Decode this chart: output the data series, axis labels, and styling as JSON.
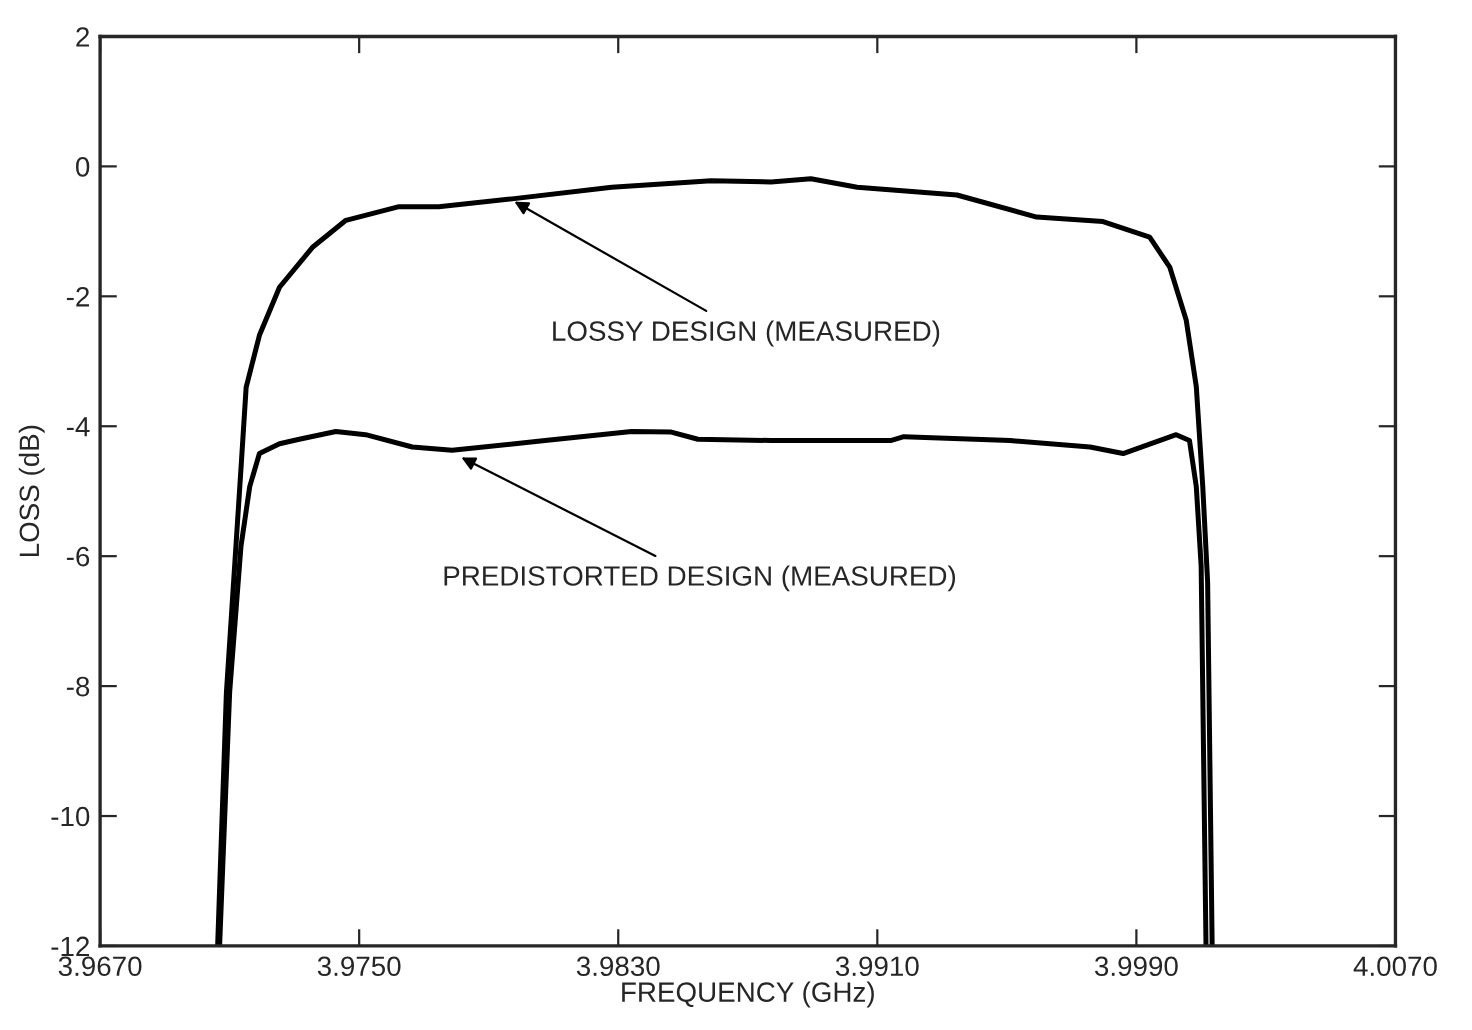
{
  "chart_data": {
    "type": "line",
    "xlabel": "FREQUENCY (GHz)",
    "ylabel": "LOSS (dB)",
    "xlim": [
      3.967,
      4.007
    ],
    "ylim": [
      -12,
      2
    ],
    "xticks": [
      {
        "value": 3.967,
        "label": "3.9670"
      },
      {
        "value": 3.975,
        "label": "3.9750"
      },
      {
        "value": 3.983,
        "label": "3.9830"
      },
      {
        "value": 3.991,
        "label": "3.9910"
      },
      {
        "value": 3.999,
        "label": "3.9990"
      },
      {
        "value": 4.007,
        "label": "4.0070"
      }
    ],
    "yticks": [
      -12,
      -10,
      -8,
      -6,
      -4,
      -2,
      0,
      2
    ],
    "grid": false,
    "legend": false,
    "marker": "none",
    "line_style": "solid",
    "series": [
      {
        "color": "#000000",
        "x": [
          3.97063,
          3.9709,
          3.97137,
          3.97151,
          3.97192,
          3.97254,
          3.97357,
          3.97459,
          3.97623,
          3.97746,
          3.97972,
          3.9828,
          3.98587,
          3.98772,
          3.98895,
          3.99038,
          3.99346,
          3.99592,
          3.99797,
          3.99941,
          4.00003,
          4.00054,
          4.00085,
          4.00105,
          4.0012,
          4.00134
        ],
        "values": [
          -12,
          -8.1,
          -4.5,
          -3.4,
          -2.6,
          -1.86,
          -1.24,
          -0.83,
          -0.62,
          -0.62,
          -0.5,
          -0.32,
          -0.22,
          -0.24,
          -0.19,
          -0.32,
          -0.44,
          -0.78,
          -0.85,
          -1.09,
          -1.55,
          -2.37,
          -3.39,
          -4.93,
          -6.4,
          -12
        ]
      },
      {
        "color": "#000000",
        "x": [
          3.97069,
          3.971,
          3.97135,
          3.97162,
          3.97192,
          3.97254,
          3.97315,
          3.97428,
          3.9752,
          3.97664,
          3.97787,
          3.98074,
          3.98341,
          3.98464,
          3.98546,
          3.98772,
          3.99141,
          3.99182,
          3.9951,
          3.99757,
          3.99859,
          4.00023,
          4.00064,
          4.00085,
          4.001,
          4.00115
        ],
        "values": [
          -12,
          -8.1,
          -5.85,
          -4.93,
          -4.42,
          -4.27,
          -4.2,
          -4.08,
          -4.13,
          -4.32,
          -4.37,
          -4.22,
          -4.08,
          -4.09,
          -4.2,
          -4.22,
          -4.22,
          -4.16,
          -4.22,
          -4.32,
          -4.42,
          -4.13,
          -4.22,
          -4.93,
          -6.15,
          -12
        ]
      }
    ],
    "annotations": [
      {
        "text": "LOSSY DESIGN (MEASURED)",
        "x": 3.97972,
        "y": -0.52
      },
      {
        "text": "PREDISTORTED DESIGN (MEASURED)",
        "x": 3.97808,
        "y": -4.46
      }
    ]
  }
}
